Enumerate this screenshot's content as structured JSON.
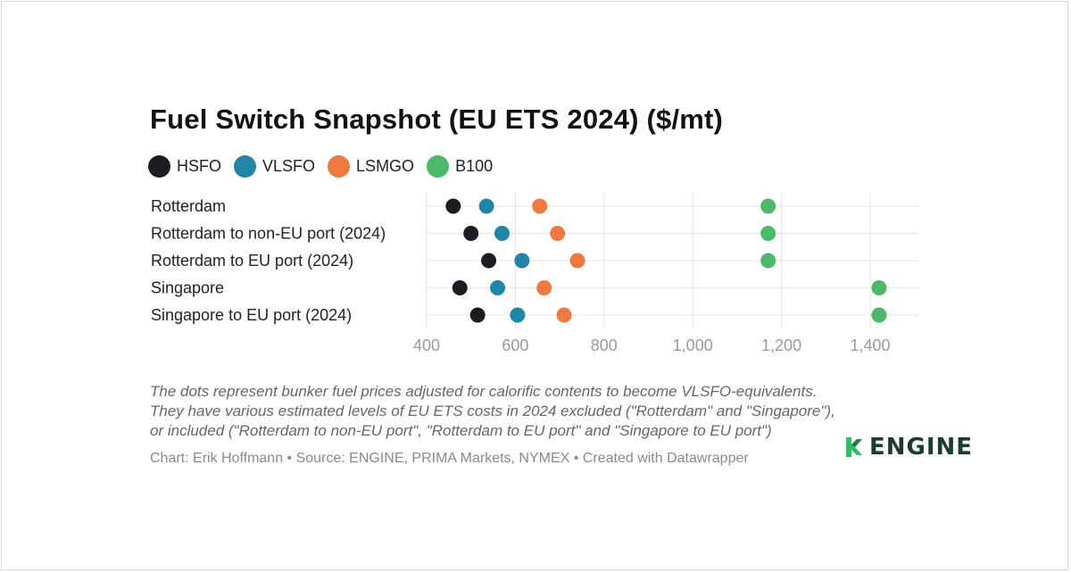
{
  "chart_data": {
    "type": "scatter",
    "title": "Fuel Switch Snapshot (EU ETS 2024) ($/mt)",
    "categories": [
      "Rotterdam",
      "Rotterdam to non-EU port (2024)",
      "Rotterdam to EU port (2024)",
      "Singapore",
      "Singapore to EU port (2024)"
    ],
    "series": [
      {
        "name": "HSFO",
        "color": "#1c1c24",
        "values": [
          460,
          500,
          540,
          475,
          515
        ]
      },
      {
        "name": "VLSFO",
        "color": "#1f86a8",
        "values": [
          535,
          570,
          615,
          560,
          605
        ]
      },
      {
        "name": "LSMGO",
        "color": "#ee7a3f",
        "values": [
          655,
          695,
          740,
          665,
          710
        ]
      },
      {
        "name": "B100",
        "color": "#4cb86a",
        "values": [
          1170,
          1170,
          1170,
          1420,
          1420
        ]
      }
    ],
    "xlim": [
      400,
      1500
    ],
    "xticks": [
      400,
      600,
      800,
      1000,
      1200,
      1400
    ],
    "xtick_labels": [
      "400",
      "600",
      "800",
      "1,000",
      "1,200",
      "1,400"
    ],
    "grid": true,
    "legend_position": "top-left"
  },
  "notes": [
    "The dots represent bunker fuel prices adjusted for calorific contents to become VLSFO-equivalents.",
    "They have various estimated levels of EU ETS costs in 2024 excluded (\"Rotterdam\" and \"Singapore\"),",
    "or included (\"Rotterdam to non-EU port\", \"Rotterdam to EU port\" and \"Singapore to EU port\")"
  ],
  "credit": "Chart: Erik Hoffmann • Source: ENGINE, PRIMA Markets, NYMEX • Created with Datawrapper",
  "logo": {
    "text": "ENGINE",
    "icon": "engine-logo-icon",
    "color": "#1a3d2e",
    "accent": "#2fbf6b"
  }
}
